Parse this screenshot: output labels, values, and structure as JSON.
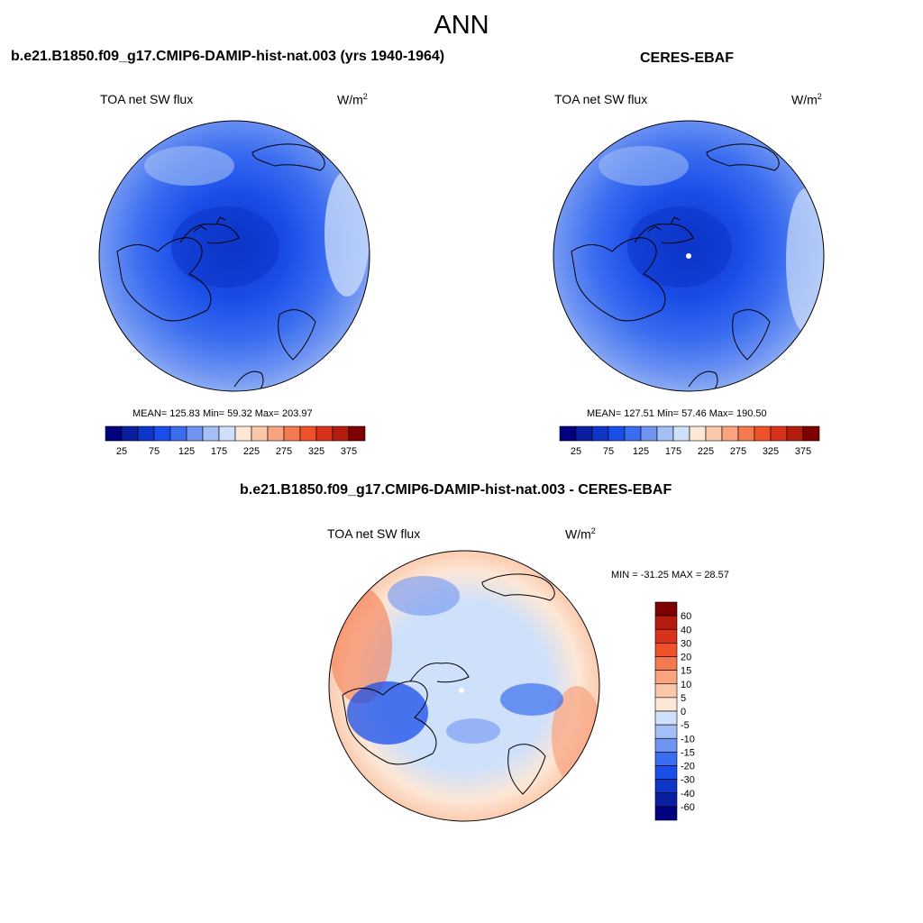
{
  "title": "ANN",
  "palette": [
    "#000080",
    "#0a1fa0",
    "#0d35c8",
    "#1a4ee8",
    "#3a6df0",
    "#6f94f2",
    "#a3bff5",
    "#cfe0fa",
    "#fde7d6",
    "#fbc7aa",
    "#f9a37f",
    "#f5794f",
    "#ef5228",
    "#d8321a",
    "#b41c0e",
    "#7f0000"
  ],
  "panels": [
    {
      "case": "b.e21.B1850.f09_g17.CMIP6-DAMIP-hist-nat.003 (yrs 1940-1964)",
      "variable": "TOA net SW flux",
      "units_base": "W/m",
      "units_exp": "2",
      "stats": {
        "text": "MEAN= 125.83  Min=  59.32  Max= 203.97",
        "mean": 125.83,
        "min": 59.32,
        "max": 203.97
      }
    },
    {
      "case": "CERES-EBAF",
      "variable": "TOA net SW flux",
      "units_base": "W/m",
      "units_exp": "2",
      "stats": {
        "text": "MEAN= 127.51  Min=  57.46  Max= 190.50",
        "mean": 127.51,
        "min": 57.46,
        "max": 190.5
      }
    },
    {
      "case": "b.e21.B1850.f09_g17.CMIP6-DAMIP-hist-nat.003 - CERES-EBAF",
      "variable": "TOA net SW flux",
      "units_base": "W/m",
      "units_exp": "2",
      "stats": {
        "text": "MIN = -31.25 MAX =  28.57",
        "min": -31.25,
        "max": 28.57
      }
    }
  ],
  "chart_data": [
    {
      "type": "heatmap",
      "title": "b.e21.B1850.f09_g17.CMIP6-DAMIP-hist-nat.003 (yrs 1940-1964)",
      "projection": "north polar stereographic",
      "variable": "TOA net SW flux",
      "units": "W/m2",
      "colorbar": {
        "orientation": "horizontal",
        "levels": [
          25,
          50,
          75,
          100,
          125,
          150,
          175,
          200,
          225,
          250,
          275,
          300,
          325,
          350,
          375
        ],
        "tick_labels": [
          "25",
          "75",
          "125",
          "175",
          "225",
          "275",
          "325",
          "375"
        ]
      },
      "mean": 125.83,
      "min": 59.32,
      "max": 203.97
    },
    {
      "type": "heatmap",
      "title": "CERES-EBAF",
      "projection": "north polar stereographic",
      "variable": "TOA net SW flux",
      "units": "W/m2",
      "colorbar": {
        "orientation": "horizontal",
        "levels": [
          25,
          50,
          75,
          100,
          125,
          150,
          175,
          200,
          225,
          250,
          275,
          300,
          325,
          350,
          375
        ],
        "tick_labels": [
          "25",
          "75",
          "125",
          "175",
          "225",
          "275",
          "325",
          "375"
        ]
      },
      "mean": 127.51,
      "min": 57.46,
      "max": 190.5
    },
    {
      "type": "heatmap",
      "title": "b.e21.B1850.f09_g17.CMIP6-DAMIP-hist-nat.003 - CERES-EBAF",
      "projection": "north polar stereographic",
      "variable": "TOA net SW flux",
      "units": "W/m2",
      "colorbar": {
        "orientation": "vertical",
        "levels": [
          60,
          40,
          30,
          20,
          15,
          10,
          5,
          0,
          -5,
          -10,
          -15,
          -20,
          -30,
          -40,
          -60
        ],
        "tick_labels": [
          "60",
          "40",
          "30",
          "20",
          "15",
          "10",
          "5",
          "0",
          "-5",
          "-10",
          "-15",
          "-20",
          "-30",
          "-40",
          "-60"
        ]
      },
      "min": -31.25,
      "max": 28.57
    }
  ]
}
